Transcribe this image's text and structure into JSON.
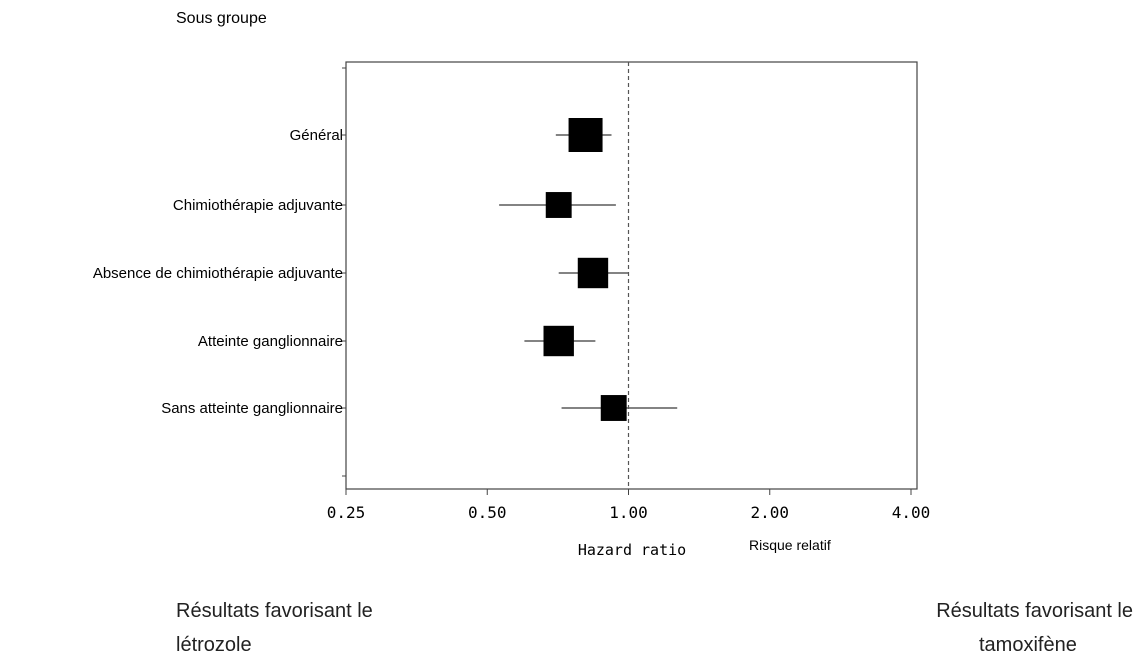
{
  "header": {
    "subgroup_label": "Sous groupe"
  },
  "chart_data": {
    "type": "scatter",
    "subtype": "forest-plot",
    "x_scale": "log2",
    "xlim": [
      0.25,
      4.0
    ],
    "x_ticks": [
      0.25,
      0.5,
      1.0,
      2.0,
      4.0
    ],
    "x_tick_labels": [
      "0.25",
      "0.50",
      "1.00",
      "2.00",
      "4.00"
    ],
    "xlabel": "Hazard ratio",
    "xlabel_secondary": "Risque relatif",
    "reference_line": 1.0,
    "rows": [
      {
        "label": "Général",
        "hr": 0.81,
        "ci_low": 0.7,
        "ci_high": 0.92,
        "weight": 1.0
      },
      {
        "label": "Chimiothérapie adjuvante",
        "hr": 0.71,
        "ci_low": 0.53,
        "ci_high": 0.94,
        "weight": 0.55
      },
      {
        "label": "Absence de chimiothérapie adjuvante",
        "hr": 0.84,
        "ci_low": 0.71,
        "ci_high": 1.0,
        "weight": 0.8
      },
      {
        "label": "Atteinte ganglionnaire",
        "hr": 0.71,
        "ci_low": 0.6,
        "ci_high": 0.85,
        "weight": 0.8
      },
      {
        "label": "Sans atteinte ganglionnaire",
        "hr": 0.93,
        "ci_low": 0.72,
        "ci_high": 1.27,
        "weight": 0.55
      }
    ]
  },
  "footer": {
    "left_line1": "Résultats favorisant le",
    "left_line2": "létrozole",
    "right_line1": "Résultats favorisant le",
    "right_line2": "tamoxifène"
  },
  "colors": {
    "marker": "#000000",
    "ci_line": "#5a5a5a",
    "axis": "#444444",
    "reference": "#555555"
  }
}
